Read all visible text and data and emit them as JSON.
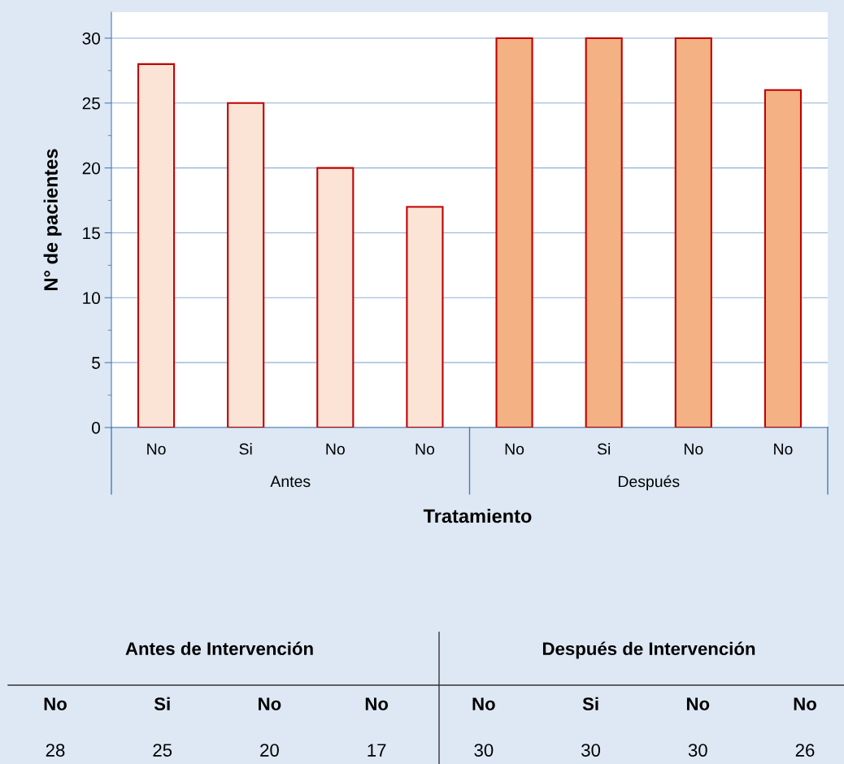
{
  "chart_data": {
    "type": "bar",
    "categories": [
      "No",
      "Si",
      "No",
      "No",
      "No",
      "Si",
      "No",
      "No"
    ],
    "values": [
      28,
      25,
      20,
      17,
      30,
      30,
      30,
      26
    ],
    "colors": [
      "#fbe4d6",
      "#fbe4d6",
      "#fbe4d6",
      "#fbe4d6",
      "#f4b183",
      "#f4b183",
      "#f4b183",
      "#f4b183"
    ],
    "ylabel": "N° de pacientes",
    "xlabel": "Tratamiento",
    "ylim": [
      0,
      32
    ],
    "yticks": [
      0,
      5,
      10,
      15,
      20,
      25,
      30
    ],
    "grid": "y",
    "annotations": [
      "Antes",
      "Después",
      "Antes de Intervención",
      "Después de Intervención",
      "28",
      "25",
      "20",
      "17",
      "30",
      "30",
      "30",
      "26"
    ]
  }
}
